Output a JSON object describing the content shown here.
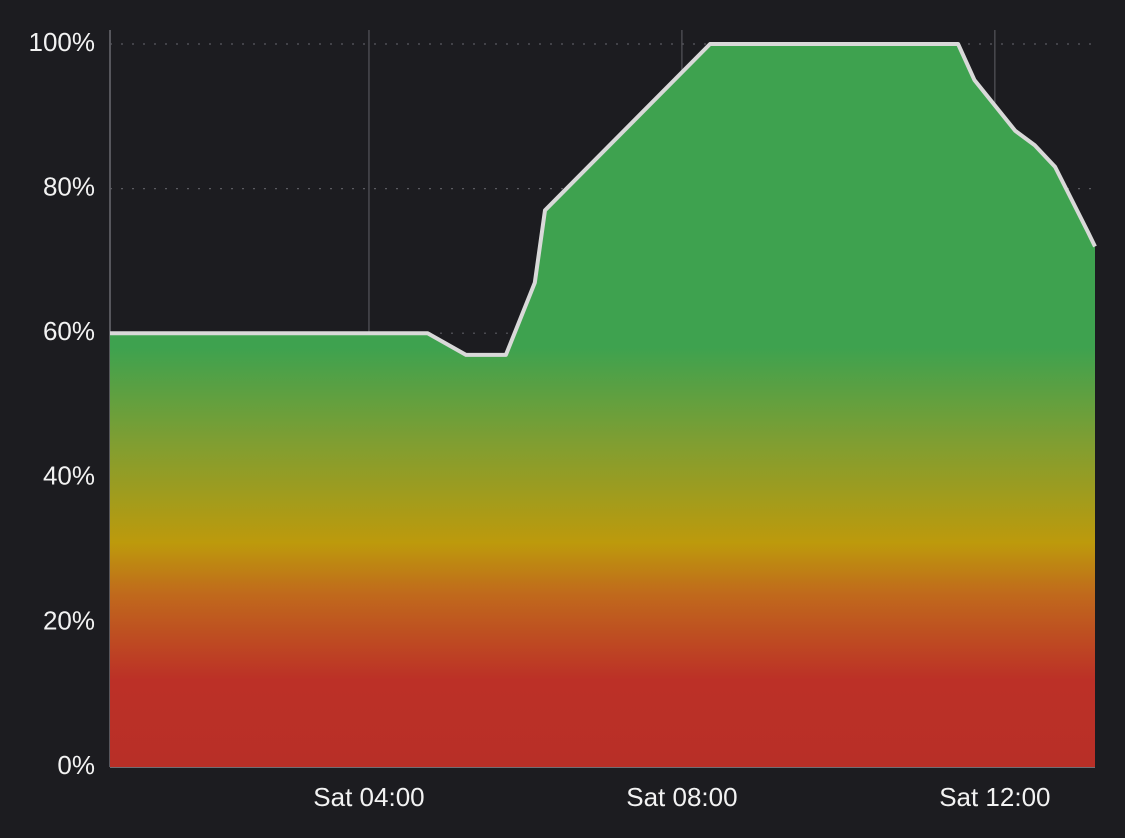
{
  "chart_data": {
    "type": "area",
    "x": [
      0.69,
      4.75,
      5.24,
      5.75,
      6.12,
      6.25,
      8.36,
      11.53,
      11.74,
      12.26,
      12.51,
      12.77,
      13.19,
      13.28
    ],
    "values": [
      60,
      60,
      57,
      57,
      67,
      77,
      100,
      100,
      95,
      88,
      86,
      83,
      74,
      72
    ],
    "line_color": "#d9d9d9",
    "xlim": [
      0.69,
      13.28
    ],
    "xticks": [
      {
        "value": 4,
        "label": "Sat 04:00"
      },
      {
        "value": 8,
        "label": "Sat 08:00"
      },
      {
        "value": 12,
        "label": "Sat 12:00"
      }
    ],
    "ylim": [
      0,
      100
    ],
    "yticks": [
      {
        "value": 0,
        "label": "0%"
      },
      {
        "value": 20,
        "label": "20%"
      },
      {
        "value": 40,
        "label": "40%"
      },
      {
        "value": 60,
        "label": "60%"
      },
      {
        "value": 80,
        "label": "80%"
      },
      {
        "value": 100,
        "label": "100%"
      }
    ],
    "grid": true
  }
}
